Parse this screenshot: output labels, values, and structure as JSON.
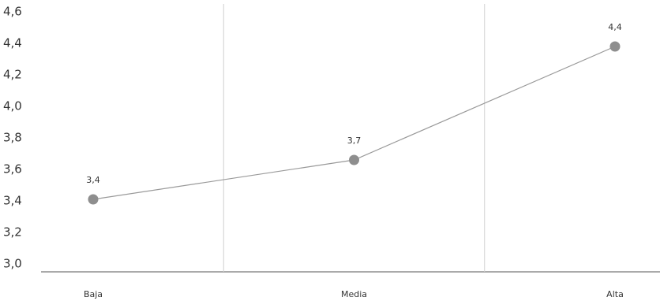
{
  "chart_data": {
    "type": "line",
    "categories": [
      "Baja",
      "Media",
      "Alta"
    ],
    "values": [
      3.41,
      3.66,
      4.38
    ],
    "value_labels": [
      "3,4",
      "3,7",
      "4,4"
    ],
    "color": "#8e8e8e",
    "ylim": [
      3.0,
      4.6
    ],
    "yticks": [
      {
        "value": 3.0,
        "label": "3,0"
      },
      {
        "value": 3.2,
        "label": "3,2"
      },
      {
        "value": 3.4,
        "label": "3,4"
      },
      {
        "value": 3.6,
        "label": "3,6"
      },
      {
        "value": 3.8,
        "label": "3,8"
      },
      {
        "value": 4.0,
        "label": "4,0"
      },
      {
        "value": 4.2,
        "label": "4,2"
      },
      {
        "value": 4.4,
        "label": "4,4"
      },
      {
        "value": 4.6,
        "label": "4,6"
      }
    ],
    "grid": false
  }
}
